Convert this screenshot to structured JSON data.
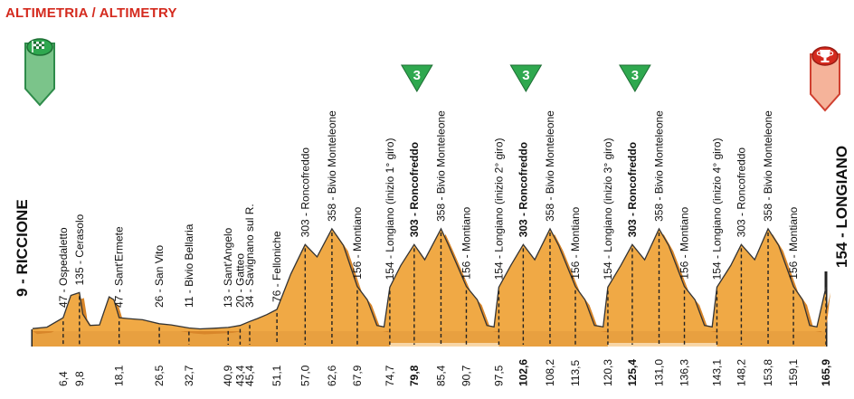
{
  "header": {
    "title": "ALTIMETRIA / ALTIMETRY"
  },
  "start": {
    "label": "9 - RICCIONE",
    "icon": "checkered-flag-icon"
  },
  "finish": {
    "label": "154 - LONGIANO",
    "icon": "trophy-icon"
  },
  "colors": {
    "fill": "#f0a945",
    "ridge": "#d8862a",
    "base": "#e8a040",
    "title": "#d42a1e",
    "kom": "#2fa84f",
    "start_marker": "#7bc48a",
    "finish_marker": "#f5b39a"
  },
  "chart_data": {
    "type": "area",
    "xlim": [
      0,
      165.9
    ],
    "ylim": [
      0,
      380
    ],
    "profile": [
      [
        0,
        9
      ],
      [
        3,
        14
      ],
      [
        6.4,
        47
      ],
      [
        8.0,
        125
      ],
      [
        9.8,
        135
      ],
      [
        10.5,
        60
      ],
      [
        12,
        20
      ],
      [
        14,
        22
      ],
      [
        16,
        120
      ],
      [
        17,
        110
      ],
      [
        18.1,
        47
      ],
      [
        20,
        44
      ],
      [
        23,
        40
      ],
      [
        26.5,
        26
      ],
      [
        29,
        22
      ],
      [
        32.7,
        11
      ],
      [
        35,
        8
      ],
      [
        38,
        10
      ],
      [
        40.9,
        13
      ],
      [
        43.4,
        20
      ],
      [
        45.4,
        34
      ],
      [
        47,
        44
      ],
      [
        49,
        58
      ],
      [
        51.1,
        76
      ],
      [
        54,
        200
      ],
      [
        57,
        303
      ],
      [
        59.5,
        260
      ],
      [
        62.6,
        358
      ],
      [
        65,
        300
      ],
      [
        67.9,
        156
      ],
      [
        70,
        110
      ],
      [
        72,
        20
      ],
      [
        73.5,
        15
      ],
      [
        74.7,
        154
      ],
      [
        77,
        230
      ],
      [
        79.8,
        303
      ],
      [
        82,
        250
      ],
      [
        85.4,
        358
      ],
      [
        87,
        300
      ],
      [
        90.7,
        156
      ],
      [
        93,
        110
      ],
      [
        95,
        20
      ],
      [
        96.5,
        15
      ],
      [
        97.5,
        154
      ],
      [
        100,
        230
      ],
      [
        102.6,
        303
      ],
      [
        105,
        250
      ],
      [
        108.2,
        358
      ],
      [
        110,
        300
      ],
      [
        113.5,
        156
      ],
      [
        115.5,
        110
      ],
      [
        117.5,
        20
      ],
      [
        119.3,
        15
      ],
      [
        120.3,
        154
      ],
      [
        123,
        230
      ],
      [
        125.4,
        303
      ],
      [
        128,
        250
      ],
      [
        131,
        358
      ],
      [
        133,
        300
      ],
      [
        136.3,
        156
      ],
      [
        138.5,
        110
      ],
      [
        140.5,
        20
      ],
      [
        142.1,
        15
      ],
      [
        143.1,
        154
      ],
      [
        146,
        230
      ],
      [
        148.2,
        303
      ],
      [
        151,
        250
      ],
      [
        153.8,
        358
      ],
      [
        156,
        300
      ],
      [
        159.1,
        156
      ],
      [
        161,
        110
      ],
      [
        162.5,
        20
      ],
      [
        164,
        15
      ],
      [
        165.9,
        154
      ]
    ],
    "points": [
      {
        "km": 6.4,
        "km_label": "6,4",
        "alt": 47,
        "label": "47 - Ospedaletto",
        "bold": false
      },
      {
        "km": 9.8,
        "km_label": "9,8",
        "alt": 135,
        "label": "135 - Cerasolo",
        "bold": false
      },
      {
        "km": 18.1,
        "km_label": "18,1",
        "alt": 47,
        "label": "47 - Sant'Ermete",
        "bold": false
      },
      {
        "km": 26.5,
        "km_label": "26,5",
        "alt": 26,
        "label": "26 - San Vito",
        "bold": false
      },
      {
        "km": 32.7,
        "km_label": "32,7",
        "alt": 11,
        "label": "11 - Bivio Bellaria",
        "bold": false
      },
      {
        "km": 40.9,
        "km_label": "40,9",
        "alt": 13,
        "label": "13 - Sant'Angelo",
        "bold": false
      },
      {
        "km": 43.4,
        "km_label": "43,4",
        "alt": 20,
        "label": "20 - Gatteo",
        "bold": false
      },
      {
        "km": 45.4,
        "km_label": "45,4",
        "alt": 34,
        "label": "34 - Savignano sul R.",
        "bold": false
      },
      {
        "km": 51.1,
        "km_label": "51,1",
        "alt": 76,
        "label": "76 - Felloniche",
        "bold": false
      },
      {
        "km": 57.0,
        "km_label": "57,0",
        "alt": 303,
        "label": "303 - Roncofreddo",
        "bold": false
      },
      {
        "km": 62.6,
        "km_label": "62,6",
        "alt": 358,
        "label": "358 - Bivio Monteleone",
        "bold": false
      },
      {
        "km": 67.9,
        "km_label": "67,9",
        "alt": 156,
        "label": "156 - Montiano",
        "bold": false
      },
      {
        "km": 74.7,
        "km_label": "74,7",
        "alt": 154,
        "label": "154 - Longiano (inizio 1° giro)",
        "bold": false
      },
      {
        "km": 79.8,
        "km_label": "79,8",
        "alt": 303,
        "label": "303 - Roncofreddo",
        "bold": true
      },
      {
        "km": 85.4,
        "km_label": "85,4",
        "alt": 358,
        "label": "358 - Bivio Monteleone",
        "bold": false
      },
      {
        "km": 90.7,
        "km_label": "90,7",
        "alt": 156,
        "label": "156 - Montiano",
        "bold": false
      },
      {
        "km": 97.5,
        "km_label": "97,5",
        "alt": 154,
        "label": "154 - Longiano (inizio 2° giro)",
        "bold": false
      },
      {
        "km": 102.6,
        "km_label": "102,6",
        "alt": 303,
        "label": "303 - Roncofreddo",
        "bold": true
      },
      {
        "km": 108.2,
        "km_label": "108,2",
        "alt": 358,
        "label": "358 - Bivio Monteleone",
        "bold": false
      },
      {
        "km": 113.5,
        "km_label": "113,5",
        "alt": 156,
        "label": "156 - Montiano",
        "bold": false
      },
      {
        "km": 120.3,
        "km_label": "120,3",
        "alt": 154,
        "label": "154 - Longiano (inizio 3° giro)",
        "bold": false
      },
      {
        "km": 125.4,
        "km_label": "125,4",
        "alt": 303,
        "label": "303 - Roncofreddo",
        "bold": true
      },
      {
        "km": 131.0,
        "km_label": "131,0",
        "alt": 358,
        "label": "358 - Bivio Monteleone",
        "bold": false
      },
      {
        "km": 136.3,
        "km_label": "136,3",
        "alt": 156,
        "label": "156 - Montiano",
        "bold": false
      },
      {
        "km": 143.1,
        "km_label": "143,1",
        "alt": 154,
        "label": "154 - Longiano (inizio 4° giro)",
        "bold": false
      },
      {
        "km": 148.2,
        "km_label": "148,2",
        "alt": 303,
        "label": "303 - Roncofreddo",
        "bold": false
      },
      {
        "km": 153.8,
        "km_label": "153,8",
        "alt": 358,
        "label": "358 - Bivio Monteleone",
        "bold": false
      },
      {
        "km": 159.1,
        "km_label": "159,1",
        "alt": 156,
        "label": "156 - Montiano",
        "bold": false
      },
      {
        "km": 165.9,
        "km_label": "165,9",
        "alt": 154,
        "label": "",
        "bold": true
      }
    ],
    "kom": [
      {
        "km": 79.8,
        "category": "3"
      },
      {
        "km": 102.6,
        "category": "3"
      },
      {
        "km": 125.4,
        "category": "3"
      }
    ],
    "highlight_segments": [
      [
        74.7,
        97.5
      ],
      [
        120.3,
        143.1
      ]
    ]
  }
}
